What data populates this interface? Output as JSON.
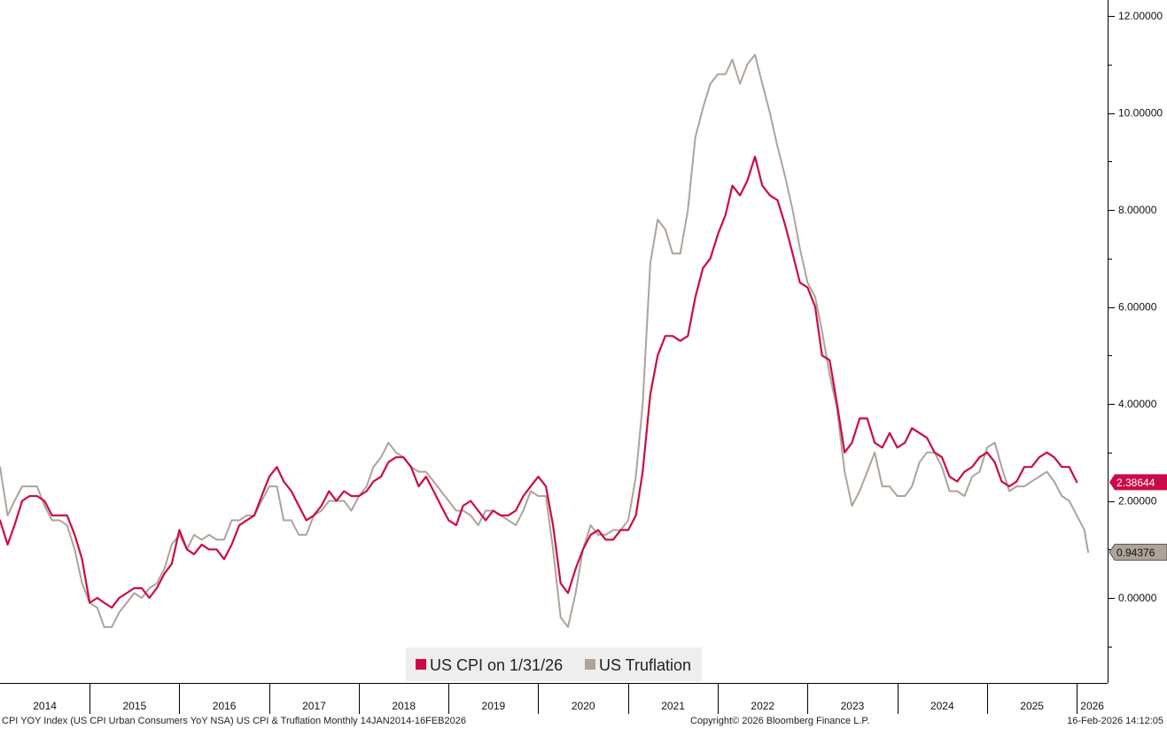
{
  "chart_data": {
    "type": "line",
    "y_ticks": [
      12.0,
      10.0,
      8.0,
      6.0,
      4.0,
      2.0,
      0.0
    ],
    "y_tick_labels": [
      "12.00000",
      "10.00000",
      "8.00000",
      "6.00000",
      "4.00000",
      "2.00000",
      "0.00000"
    ],
    "ylim": [
      -1.8,
      12.3
    ],
    "x_tick_labels": [
      "2014",
      "2015",
      "2016",
      "2017",
      "2018",
      "2019",
      "2020",
      "2021",
      "2022",
      "2023",
      "2024",
      "2025",
      "2026"
    ],
    "x_start": "2014-01",
    "x_end": "2026-02",
    "series": [
      {
        "name": "US CPI on 1/31/26",
        "color": "#cc0a47",
        "last_value_label": "2.38644",
        "points": [
          [
            "2014-01",
            1.6
          ],
          [
            "2014-02",
            1.1
          ],
          [
            "2014-03",
            1.5
          ],
          [
            "2014-04",
            2.0
          ],
          [
            "2014-05",
            2.1
          ],
          [
            "2014-06",
            2.1
          ],
          [
            "2014-07",
            2.0
          ],
          [
            "2014-08",
            1.7
          ],
          [
            "2014-09",
            1.7
          ],
          [
            "2014-10",
            1.7
          ],
          [
            "2014-11",
            1.3
          ],
          [
            "2014-12",
            0.8
          ],
          [
            "2015-01",
            -0.1
          ],
          [
            "2015-02",
            0.0
          ],
          [
            "2015-03",
            -0.1
          ],
          [
            "2015-04",
            -0.2
          ],
          [
            "2015-05",
            0.0
          ],
          [
            "2015-06",
            0.1
          ],
          [
            "2015-07",
            0.2
          ],
          [
            "2015-08",
            0.2
          ],
          [
            "2015-09",
            0.0
          ],
          [
            "2015-10",
            0.2
          ],
          [
            "2015-11",
            0.5
          ],
          [
            "2015-12",
            0.7
          ],
          [
            "2016-01",
            1.4
          ],
          [
            "2016-02",
            1.0
          ],
          [
            "2016-03",
            0.9
          ],
          [
            "2016-04",
            1.1
          ],
          [
            "2016-05",
            1.0
          ],
          [
            "2016-06",
            1.0
          ],
          [
            "2016-07",
            0.8
          ],
          [
            "2016-08",
            1.1
          ],
          [
            "2016-09",
            1.5
          ],
          [
            "2016-10",
            1.6
          ],
          [
            "2016-11",
            1.7
          ],
          [
            "2016-12",
            2.1
          ],
          [
            "2017-01",
            2.5
          ],
          [
            "2017-02",
            2.7
          ],
          [
            "2017-03",
            2.4
          ],
          [
            "2017-04",
            2.2
          ],
          [
            "2017-05",
            1.9
          ],
          [
            "2017-06",
            1.6
          ],
          [
            "2017-07",
            1.7
          ],
          [
            "2017-08",
            1.9
          ],
          [
            "2017-09",
            2.2
          ],
          [
            "2017-10",
            2.0
          ],
          [
            "2017-11",
            2.2
          ],
          [
            "2017-12",
            2.1
          ],
          [
            "2018-01",
            2.1
          ],
          [
            "2018-02",
            2.2
          ],
          [
            "2018-03",
            2.4
          ],
          [
            "2018-04",
            2.5
          ],
          [
            "2018-05",
            2.8
          ],
          [
            "2018-06",
            2.9
          ],
          [
            "2018-07",
            2.9
          ],
          [
            "2018-08",
            2.7
          ],
          [
            "2018-09",
            2.3
          ],
          [
            "2018-10",
            2.5
          ],
          [
            "2018-11",
            2.2
          ],
          [
            "2018-12",
            1.9
          ],
          [
            "2019-01",
            1.6
          ],
          [
            "2019-02",
            1.5
          ],
          [
            "2019-03",
            1.9
          ],
          [
            "2019-04",
            2.0
          ],
          [
            "2019-05",
            1.8
          ],
          [
            "2019-06",
            1.6
          ],
          [
            "2019-07",
            1.8
          ],
          [
            "2019-08",
            1.7
          ],
          [
            "2019-09",
            1.7
          ],
          [
            "2019-10",
            1.8
          ],
          [
            "2019-11",
            2.1
          ],
          [
            "2019-12",
            2.3
          ],
          [
            "2020-01",
            2.5
          ],
          [
            "2020-02",
            2.3
          ],
          [
            "2020-03",
            1.5
          ],
          [
            "2020-04",
            0.3
          ],
          [
            "2020-05",
            0.1
          ],
          [
            "2020-06",
            0.6
          ],
          [
            "2020-07",
            1.0
          ],
          [
            "2020-08",
            1.3
          ],
          [
            "2020-09",
            1.4
          ],
          [
            "2020-10",
            1.2
          ],
          [
            "2020-11",
            1.2
          ],
          [
            "2020-12",
            1.4
          ],
          [
            "2021-01",
            1.4
          ],
          [
            "2021-02",
            1.7
          ],
          [
            "2021-03",
            2.6
          ],
          [
            "2021-04",
            4.2
          ],
          [
            "2021-05",
            5.0
          ],
          [
            "2021-06",
            5.4
          ],
          [
            "2021-07",
            5.4
          ],
          [
            "2021-08",
            5.3
          ],
          [
            "2021-09",
            5.4
          ],
          [
            "2021-10",
            6.2
          ],
          [
            "2021-11",
            6.8
          ],
          [
            "2021-12",
            7.0
          ],
          [
            "2022-01",
            7.5
          ],
          [
            "2022-02",
            7.9
          ],
          [
            "2022-03",
            8.5
          ],
          [
            "2022-04",
            8.3
          ],
          [
            "2022-05",
            8.6
          ],
          [
            "2022-06",
            9.1
          ],
          [
            "2022-07",
            8.5
          ],
          [
            "2022-08",
            8.3
          ],
          [
            "2022-09",
            8.2
          ],
          [
            "2022-10",
            7.7
          ],
          [
            "2022-11",
            7.1
          ],
          [
            "2022-12",
            6.5
          ],
          [
            "2023-01",
            6.4
          ],
          [
            "2023-02",
            6.0
          ],
          [
            "2023-03",
            5.0
          ],
          [
            "2023-04",
            4.9
          ],
          [
            "2023-05",
            4.0
          ],
          [
            "2023-06",
            3.0
          ],
          [
            "2023-07",
            3.2
          ],
          [
            "2023-08",
            3.7
          ],
          [
            "2023-09",
            3.7
          ],
          [
            "2023-10",
            3.2
          ],
          [
            "2023-11",
            3.1
          ],
          [
            "2023-12",
            3.4
          ],
          [
            "2024-01",
            3.1
          ],
          [
            "2024-02",
            3.2
          ],
          [
            "2024-03",
            3.5
          ],
          [
            "2024-04",
            3.4
          ],
          [
            "2024-05",
            3.3
          ],
          [
            "2024-06",
            3.0
          ],
          [
            "2024-07",
            2.9
          ],
          [
            "2024-08",
            2.5
          ],
          [
            "2024-09",
            2.4
          ],
          [
            "2024-10",
            2.6
          ],
          [
            "2024-11",
            2.7
          ],
          [
            "2024-12",
            2.9
          ],
          [
            "2025-01",
            3.0
          ],
          [
            "2025-02",
            2.8
          ],
          [
            "2025-03",
            2.4
          ],
          [
            "2025-04",
            2.3
          ],
          [
            "2025-05",
            2.4
          ],
          [
            "2025-06",
            2.7
          ],
          [
            "2025-07",
            2.7
          ],
          [
            "2025-08",
            2.9
          ],
          [
            "2025-09",
            3.0
          ],
          [
            "2025-10",
            2.9
          ],
          [
            "2025-11",
            2.7
          ],
          [
            "2025-12",
            2.7
          ],
          [
            "2026-01",
            2.38644
          ]
        ]
      },
      {
        "name": "US Truflation",
        "color": "#aea398",
        "last_value_label": "0.94376",
        "points": [
          [
            "2014-01",
            2.7
          ],
          [
            "2014-02",
            1.7
          ],
          [
            "2014-03",
            2.0
          ],
          [
            "2014-04",
            2.3
          ],
          [
            "2014-05",
            2.3
          ],
          [
            "2014-06",
            2.3
          ],
          [
            "2014-07",
            1.9
          ],
          [
            "2014-08",
            1.6
          ],
          [
            "2014-09",
            1.6
          ],
          [
            "2014-10",
            1.5
          ],
          [
            "2014-11",
            1.0
          ],
          [
            "2014-12",
            0.3
          ],
          [
            "2015-01",
            -0.1
          ],
          [
            "2015-02",
            -0.2
          ],
          [
            "2015-03",
            -0.6
          ],
          [
            "2015-04",
            -0.6
          ],
          [
            "2015-05",
            -0.3
          ],
          [
            "2015-06",
            -0.1
          ],
          [
            "2015-07",
            0.1
          ],
          [
            "2015-08",
            0.0
          ],
          [
            "2015-09",
            0.2
          ],
          [
            "2015-10",
            0.3
          ],
          [
            "2015-11",
            0.6
          ],
          [
            "2015-12",
            1.1
          ],
          [
            "2016-01",
            1.3
          ],
          [
            "2016-02",
            1.0
          ],
          [
            "2016-03",
            1.3
          ],
          [
            "2016-04",
            1.2
          ],
          [
            "2016-05",
            1.3
          ],
          [
            "2016-06",
            1.2
          ],
          [
            "2016-07",
            1.2
          ],
          [
            "2016-08",
            1.6
          ],
          [
            "2016-09",
            1.6
          ],
          [
            "2016-10",
            1.7
          ],
          [
            "2016-11",
            1.7
          ],
          [
            "2016-12",
            2.0
          ],
          [
            "2017-01",
            2.3
          ],
          [
            "2017-02",
            2.3
          ],
          [
            "2017-03",
            1.6
          ],
          [
            "2017-04",
            1.6
          ],
          [
            "2017-05",
            1.3
          ],
          [
            "2017-06",
            1.3
          ],
          [
            "2017-07",
            1.7
          ],
          [
            "2017-08",
            1.8
          ],
          [
            "2017-09",
            2.0
          ],
          [
            "2017-10",
            2.0
          ],
          [
            "2017-11",
            2.0
          ],
          [
            "2017-12",
            1.8
          ],
          [
            "2018-01",
            2.1
          ],
          [
            "2018-02",
            2.3
          ],
          [
            "2018-03",
            2.7
          ],
          [
            "2018-04",
            2.9
          ],
          [
            "2018-05",
            3.2
          ],
          [
            "2018-06",
            3.0
          ],
          [
            "2018-07",
            2.9
          ],
          [
            "2018-08",
            2.7
          ],
          [
            "2018-09",
            2.6
          ],
          [
            "2018-10",
            2.6
          ],
          [
            "2018-11",
            2.4
          ],
          [
            "2018-12",
            2.2
          ],
          [
            "2019-01",
            2.0
          ],
          [
            "2019-02",
            1.8
          ],
          [
            "2019-03",
            1.8
          ],
          [
            "2019-04",
            1.7
          ],
          [
            "2019-05",
            1.5
          ],
          [
            "2019-06",
            1.8
          ],
          [
            "2019-07",
            1.8
          ],
          [
            "2019-08",
            1.7
          ],
          [
            "2019-09",
            1.6
          ],
          [
            "2019-10",
            1.5
          ],
          [
            "2019-11",
            1.8
          ],
          [
            "2019-12",
            2.2
          ],
          [
            "2020-01",
            2.1
          ],
          [
            "2020-02",
            2.1
          ],
          [
            "2020-03",
            1.0
          ],
          [
            "2020-04",
            -0.4
          ],
          [
            "2020-05",
            -0.6
          ],
          [
            "2020-06",
            0.1
          ],
          [
            "2020-07",
            1.0
          ],
          [
            "2020-08",
            1.5
          ],
          [
            "2020-09",
            1.3
          ],
          [
            "2020-10",
            1.3
          ],
          [
            "2020-11",
            1.4
          ],
          [
            "2020-12",
            1.4
          ],
          [
            "2021-01",
            1.6
          ],
          [
            "2021-02",
            2.5
          ],
          [
            "2021-03",
            4.0
          ],
          [
            "2021-04",
            6.9
          ],
          [
            "2021-05",
            7.8
          ],
          [
            "2021-06",
            7.6
          ],
          [
            "2021-07",
            7.1
          ],
          [
            "2021-08",
            7.1
          ],
          [
            "2021-09",
            8.0
          ],
          [
            "2021-10",
            9.5
          ],
          [
            "2021-11",
            10.1
          ],
          [
            "2021-12",
            10.6
          ],
          [
            "2022-01",
            10.8
          ],
          [
            "2022-02",
            10.8
          ],
          [
            "2022-03",
            11.1
          ],
          [
            "2022-04",
            10.6
          ],
          [
            "2022-05",
            11.0
          ],
          [
            "2022-06",
            11.2
          ],
          [
            "2022-07",
            10.6
          ],
          [
            "2022-08",
            10.0
          ],
          [
            "2022-09",
            9.3
          ],
          [
            "2022-10",
            8.7
          ],
          [
            "2022-11",
            8.0
          ],
          [
            "2022-12",
            7.2
          ],
          [
            "2023-01",
            6.5
          ],
          [
            "2023-02",
            6.2
          ],
          [
            "2023-03",
            5.5
          ],
          [
            "2023-04",
            4.6
          ],
          [
            "2023-05",
            3.9
          ],
          [
            "2023-06",
            2.6
          ],
          [
            "2023-07",
            1.9
          ],
          [
            "2023-08",
            2.2
          ],
          [
            "2023-09",
            2.6
          ],
          [
            "2023-10",
            3.0
          ],
          [
            "2023-11",
            2.3
          ],
          [
            "2023-12",
            2.3
          ],
          [
            "2024-01",
            2.1
          ],
          [
            "2024-02",
            2.1
          ],
          [
            "2024-03",
            2.3
          ],
          [
            "2024-04",
            2.8
          ],
          [
            "2024-05",
            3.0
          ],
          [
            "2024-06",
            3.0
          ],
          [
            "2024-07",
            2.7
          ],
          [
            "2024-08",
            2.2
          ],
          [
            "2024-09",
            2.2
          ],
          [
            "2024-10",
            2.1
          ],
          [
            "2024-11",
            2.5
          ],
          [
            "2024-12",
            2.6
          ],
          [
            "2025-01",
            3.1
          ],
          [
            "2025-02",
            3.2
          ],
          [
            "2025-03",
            2.7
          ],
          [
            "2025-04",
            2.2
          ],
          [
            "2025-05",
            2.3
          ],
          [
            "2025-06",
            2.3
          ],
          [
            "2025-07",
            2.4
          ],
          [
            "2025-08",
            2.5
          ],
          [
            "2025-09",
            2.6
          ],
          [
            "2025-10",
            2.4
          ],
          [
            "2025-11",
            2.1
          ],
          [
            "2025-12",
            2.0
          ],
          [
            "2026-01",
            1.7
          ],
          [
            "2026-02",
            1.4
          ],
          [
            "2026-02-16",
            0.94376
          ]
        ]
      }
    ],
    "legend_position": "bottom-center",
    "grid": false,
    "last_value_badges": true,
    "y_axis_side": "right"
  },
  "footer": {
    "left": "CPI YOY Index (US CPI Urban Consumers YoY NSA) US CPI & Truflation Monthly 14JAN2014-16FEB2026",
    "center": "Copyright© 2026 Bloomberg Finance L.P.",
    "right": "16-Feb-2026 14:12:05"
  }
}
